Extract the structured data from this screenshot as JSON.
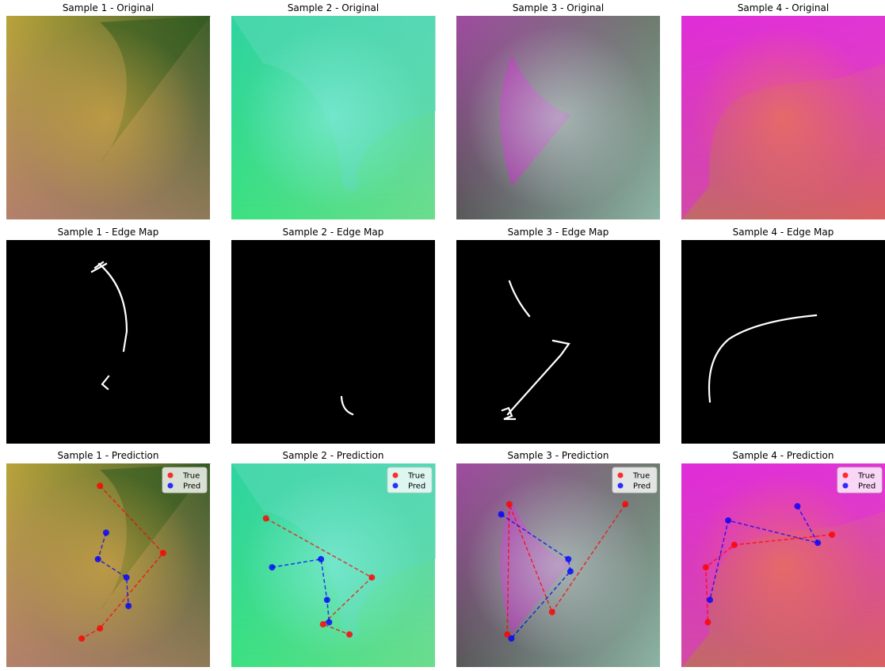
{
  "figure": {
    "panels": [
      {
        "title": "Sample 1 - Original",
        "kind": "original",
        "sample": 0
      },
      {
        "title": "Sample 2 - Original",
        "kind": "original",
        "sample": 1
      },
      {
        "title": "Sample 3 - Original",
        "kind": "original",
        "sample": 2
      },
      {
        "title": "Sample 4 - Original",
        "kind": "original",
        "sample": 3
      },
      {
        "title": "Sample 1 - Edge Map",
        "kind": "edge",
        "sample": 0
      },
      {
        "title": "Sample 2 - Edge Map",
        "kind": "edge",
        "sample": 1
      },
      {
        "title": "Sample 3 - Edge Map",
        "kind": "edge",
        "sample": 2
      },
      {
        "title": "Sample 4 - Edge Map",
        "kind": "edge",
        "sample": 3
      },
      {
        "title": "Sample 1 - Prediction",
        "kind": "prediction",
        "sample": 0
      },
      {
        "title": "Sample 2 - Prediction",
        "kind": "prediction",
        "sample": 1
      },
      {
        "title": "Sample 3 - Prediction",
        "kind": "prediction",
        "sample": 2
      },
      {
        "title": "Sample 4 - Prediction",
        "kind": "prediction",
        "sample": 3
      }
    ],
    "samples": [
      {
        "colors": {
          "tl": "#b8a43a",
          "tr": "#3d5f2a",
          "bl": "#b47f6c",
          "br": "#8e7a58",
          "c": "#e0b040"
        }
      },
      {
        "colors": {
          "tl": "#2ed4a0",
          "tr": "#56d8b8",
          "bl": "#3ce080",
          "br": "#6cdc8c",
          "c": "#8ef0e8"
        }
      },
      {
        "colors": {
          "tl": "#a04ca0",
          "tr": "#6d7d6e",
          "bl": "#585858",
          "br": "#8cb4a4",
          "c": "#c8e6d8"
        }
      },
      {
        "colors": {
          "tl": "#e02ad8",
          "tr": "#e040d0",
          "bl": "#c06a68",
          "br": "#d86060",
          "c": "#f08040"
        }
      }
    ]
  },
  "legend": {
    "true_label": "True",
    "pred_label": "Pred",
    "true_color": "#ff0000",
    "pred_color": "#0000ff"
  },
  "chart_data": [
    {
      "type": "scatter",
      "title": "Sample 1 - Prediction",
      "xlim": [
        0,
        1
      ],
      "ylim": [
        0,
        1
      ],
      "series": [
        {
          "name": "True",
          "points": [
            [
              0.46,
              0.89
            ],
            [
              0.77,
              0.56
            ],
            [
              0.46,
              0.19
            ],
            [
              0.37,
              0.14
            ]
          ]
        },
        {
          "name": "Pred",
          "points": [
            [
              0.49,
              0.66
            ],
            [
              0.45,
              0.53
            ],
            [
              0.59,
              0.44
            ],
            [
              0.6,
              0.3
            ]
          ]
        }
      ]
    },
    {
      "type": "scatter",
      "title": "Sample 2 - Prediction",
      "xlim": [
        0,
        1
      ],
      "ylim": [
        0,
        1
      ],
      "series": [
        {
          "name": "True",
          "points": [
            [
              0.17,
              0.73
            ],
            [
              0.69,
              0.44
            ],
            [
              0.45,
              0.21
            ],
            [
              0.58,
              0.16
            ]
          ]
        },
        {
          "name": "Pred",
          "points": [
            [
              0.2,
              0.49
            ],
            [
              0.44,
              0.53
            ],
            [
              0.47,
              0.33
            ],
            [
              0.48,
              0.22
            ]
          ]
        }
      ]
    },
    {
      "type": "scatter",
      "title": "Sample 3 - Prediction",
      "xlim": [
        0,
        1
      ],
      "ylim": [
        0,
        1
      ],
      "series": [
        {
          "name": "True",
          "points": [
            [
              0.83,
              0.8
            ],
            [
              0.47,
              0.27
            ],
            [
              0.26,
              0.8
            ],
            [
              0.25,
              0.16
            ]
          ]
        },
        {
          "name": "Pred",
          "points": [
            [
              0.22,
              0.75
            ],
            [
              0.55,
              0.53
            ],
            [
              0.56,
              0.47
            ],
            [
              0.27,
              0.14
            ]
          ]
        }
      ]
    },
    {
      "type": "scatter",
      "title": "Sample 4 - Prediction",
      "xlim": [
        0,
        1
      ],
      "ylim": [
        0,
        1
      ],
      "series": [
        {
          "name": "True",
          "points": [
            [
              0.74,
              0.65
            ],
            [
              0.26,
              0.6
            ],
            [
              0.12,
              0.49
            ],
            [
              0.13,
              0.22
            ]
          ]
        },
        {
          "name": "Pred",
          "points": [
            [
              0.57,
              0.79
            ],
            [
              0.67,
              0.61
            ],
            [
              0.23,
              0.72
            ],
            [
              0.14,
              0.33
            ]
          ]
        }
      ]
    }
  ]
}
